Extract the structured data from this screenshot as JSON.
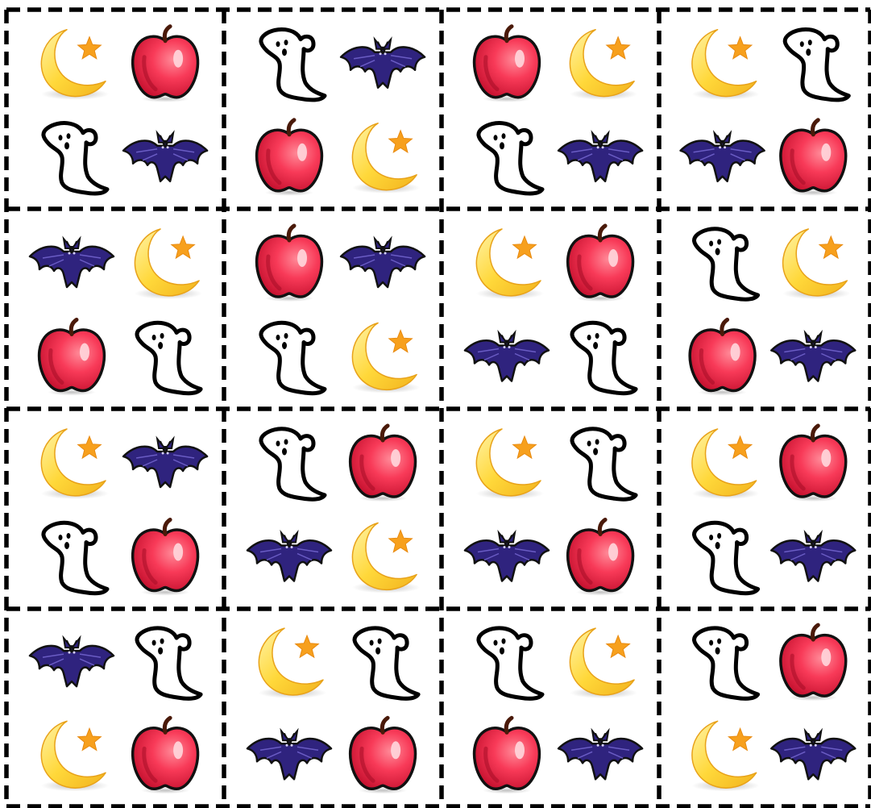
{
  "puzzle": {
    "rows": 4,
    "cols": 4,
    "cells": [
      [
        [
          "moon",
          "apple",
          "ghost",
          "bat"
        ],
        [
          "ghost",
          "bat",
          "apple",
          "moon"
        ],
        [
          "apple",
          "moon",
          "ghost",
          "bat"
        ],
        [
          "moon",
          "ghost",
          "bat",
          "apple"
        ]
      ],
      [
        [
          "bat",
          "moon",
          "apple",
          "ghost"
        ],
        [
          "apple",
          "bat",
          "ghost",
          "moon"
        ],
        [
          "moon",
          "apple",
          "bat",
          "ghost"
        ],
        [
          "ghost",
          "moon",
          "apple",
          "bat"
        ]
      ],
      [
        [
          "moon",
          "bat",
          "ghost",
          "apple"
        ],
        [
          "ghost",
          "apple",
          "bat",
          "moon"
        ],
        [
          "moon",
          "ghost",
          "bat",
          "apple"
        ],
        [
          "moon",
          "apple",
          "ghost",
          "bat"
        ]
      ],
      [
        [
          "bat",
          "ghost",
          "moon",
          "apple"
        ],
        [
          "moon",
          "ghost",
          "bat",
          "apple"
        ],
        [
          "ghost",
          "moon",
          "apple",
          "bat"
        ],
        [
          "ghost",
          "apple",
          "moon",
          "bat"
        ]
      ]
    ]
  },
  "icons": {
    "apple": "apple-icon",
    "bat": "bat-icon",
    "ghost": "ghost-icon",
    "moon": "moon-star-icon"
  },
  "colors": {
    "grid_line": "#000000",
    "background": "#ffffff",
    "apple_fill": "#f0284a",
    "bat_fill": "#2f237e",
    "moon_fill": "#ffd23a",
    "star_fill": "#f7a01d",
    "ghost_fill": "#ffffff"
  }
}
